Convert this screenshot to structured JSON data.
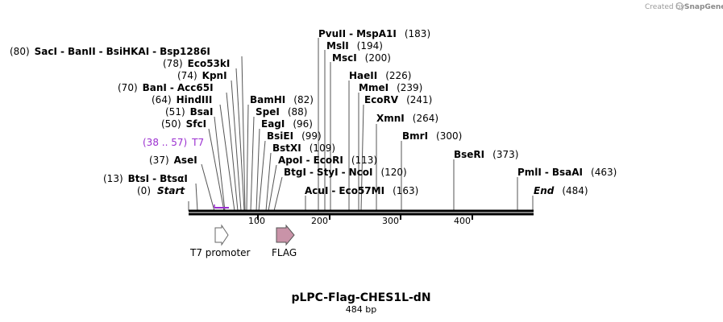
{
  "credit": {
    "prefix": "Created by",
    "brand": "SnapGene"
  },
  "sequence": {
    "name": "pLPC-Flag-CHES1L-dN",
    "length_label": "484 bp",
    "length": 484
  },
  "ruler": {
    "ticks": [
      "100",
      "200",
      "300",
      "400"
    ]
  },
  "sites": [
    {
      "name": "SacI",
      "pos": 80
    },
    {
      "name": "BanII",
      "pos": 80
    },
    {
      "name": "BsiHKAI",
      "pos": 80
    },
    {
      "name": "Bsp1286I",
      "pos": 80
    },
    {
      "name": "Eco53kI",
      "pos": 78
    },
    {
      "name": "KpnI",
      "pos": 74
    },
    {
      "name": "BanI",
      "pos": 70
    },
    {
      "name": "Acc65I",
      "pos": 70
    },
    {
      "name": "HindIII",
      "pos": 64
    },
    {
      "name": "BsaI",
      "pos": 51
    },
    {
      "name": "SfcI",
      "pos": 50
    },
    {
      "name": "AseI",
      "pos": 37
    },
    {
      "name": "BtsI",
      "pos": 13
    },
    {
      "name": "BtsαI",
      "pos": 13
    },
    {
      "name": "Start",
      "pos": 0
    },
    {
      "name": "BamHI",
      "pos": 82
    },
    {
      "name": "SpeI",
      "pos": 88
    },
    {
      "name": "EagI",
      "pos": 96
    },
    {
      "name": "BsiEI",
      "pos": 99
    },
    {
      "name": "BstXI",
      "pos": 109
    },
    {
      "name": "ApoI",
      "pos": 113
    },
    {
      "name": "EcoRI",
      "pos": 113
    },
    {
      "name": "BtgI",
      "pos": 120
    },
    {
      "name": "StyI",
      "pos": 120
    },
    {
      "name": "NcoI",
      "pos": 120
    },
    {
      "name": "PvuII",
      "pos": 183
    },
    {
      "name": "MspA1I",
      "pos": 183
    },
    {
      "name": "MslI",
      "pos": 194
    },
    {
      "name": "MscI",
      "pos": 200
    },
    {
      "name": "AcuI",
      "pos": 163
    },
    {
      "name": "Eco57MI",
      "pos": 163
    },
    {
      "name": "HaeII",
      "pos": 226
    },
    {
      "name": "MmeI",
      "pos": 239
    },
    {
      "name": "EcoRV",
      "pos": 241
    },
    {
      "name": "XmnI",
      "pos": 264
    },
    {
      "name": "BmrI",
      "pos": 300
    },
    {
      "name": "BseRI",
      "pos": 373
    },
    {
      "name": "PmlI",
      "pos": 463
    },
    {
      "name": "BsaAI",
      "pos": 463
    },
    {
      "name": "End",
      "pos": 484
    }
  ],
  "position_labels": {
    "sacI": "(80)",
    "eco53kI": "(78)",
    "kpnI": "(74)",
    "banI": "(70)",
    "hindIII": "(64)",
    "bsaI": "(51)",
    "sfcI": "(50)",
    "aseI": "(37)",
    "btsI": "(13)",
    "start": "(0)",
    "bamHI": "(82)",
    "speI": "(88)",
    "eagI": "(96)",
    "bsiEI": "(99)",
    "bstXI": "(109)",
    "ecoRI": "(113)",
    "ncoI": "(120)",
    "pvuII": "(183)",
    "mslI": "(194)",
    "mscI": "(200)",
    "acuI": "(163)",
    "haeII": "(226)",
    "mmeI": "(239)",
    "ecoRV": "(241)",
    "xmnI": "(264)",
    "bmrI": "(300)",
    "bseRI": "(373)",
    "pmlI": "(463)",
    "end": "(484)"
  },
  "primer": {
    "name": "T7",
    "range": "(38 .. 57)",
    "color": "#9b30d0"
  },
  "features": [
    {
      "name": "T7 promoter",
      "start": 37,
      "end": 57,
      "color": "#ffffff",
      "stroke": "#666666"
    },
    {
      "name": "FLAG",
      "start": 124,
      "end": 148,
      "color": "#c993a8",
      "stroke": "#555555"
    }
  ]
}
